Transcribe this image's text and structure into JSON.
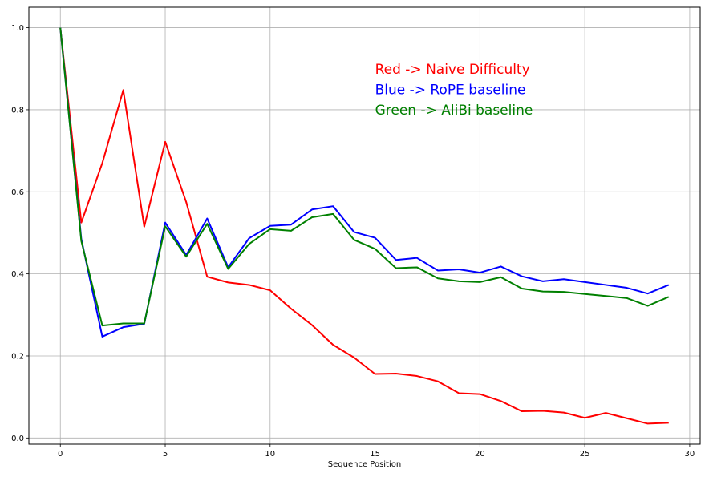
{
  "chart_data": {
    "type": "line",
    "title": "",
    "xlabel": "Sequence Position",
    "ylabel": "",
    "xlim": [
      -1.5,
      30.5
    ],
    "ylim": [
      -0.015,
      1.05
    ],
    "xticks": [
      0,
      5,
      10,
      15,
      20,
      25,
      30
    ],
    "xtick_labels": [
      "0",
      "5",
      "10",
      "15",
      "20",
      "25",
      "30"
    ],
    "yticks": [
      0.0,
      0.2,
      0.4,
      0.6,
      0.8,
      1.0
    ],
    "ytick_labels": [
      "0.0",
      "0.2",
      "0.4",
      "0.6",
      "0.8",
      "1.0"
    ],
    "grid": true,
    "x": [
      0,
      1,
      2,
      3,
      4,
      5,
      6,
      7,
      8,
      9,
      10,
      11,
      12,
      13,
      14,
      15,
      16,
      17,
      18,
      19,
      20,
      21,
      22,
      23,
      24,
      25,
      26,
      27,
      28,
      29
    ],
    "series": [
      {
        "color": "#ff0000",
        "values": [
          1.0,
          0.525,
          0.67,
          0.848,
          0.515,
          0.722,
          0.575,
          0.393,
          0.379,
          0.373,
          0.36,
          0.315,
          0.275,
          0.227,
          0.196,
          0.156,
          0.157,
          0.151,
          0.138,
          0.109,
          0.107,
          0.09,
          0.065,
          0.066,
          0.062,
          0.049,
          0.061,
          0.048,
          0.035,
          0.037
        ]
      },
      {
        "color": "#0000ff",
        "values": [
          1.0,
          0.485,
          0.247,
          0.27,
          0.278,
          0.525,
          0.446,
          0.535,
          0.416,
          0.487,
          0.517,
          0.52,
          0.557,
          0.565,
          0.502,
          0.488,
          0.434,
          0.439,
          0.408,
          0.411,
          0.403,
          0.418,
          0.394,
          0.382,
          0.387,
          0.38,
          0.373,
          0.366,
          0.352,
          0.373
        ]
      },
      {
        "color": "#008000",
        "values": [
          1.0,
          0.48,
          0.274,
          0.279,
          0.279,
          0.516,
          0.442,
          0.522,
          0.412,
          0.473,
          0.509,
          0.505,
          0.538,
          0.546,
          0.483,
          0.461,
          0.414,
          0.416,
          0.389,
          0.382,
          0.38,
          0.392,
          0.364,
          0.357,
          0.356,
          0.351,
          0.346,
          0.341,
          0.322,
          0.344
        ]
      }
    ],
    "annotations": [
      {
        "text": "Red -> Naive Difficulty",
        "color": "#ff0000",
        "x": 15,
        "y": 0.9
      },
      {
        "text": "Blue -> RoPE baseline",
        "color": "#0000ff",
        "x": 15,
        "y": 0.85
      },
      {
        "text": "Green -> AliBi baseline",
        "color": "#008000",
        "x": 15,
        "y": 0.8
      }
    ]
  }
}
